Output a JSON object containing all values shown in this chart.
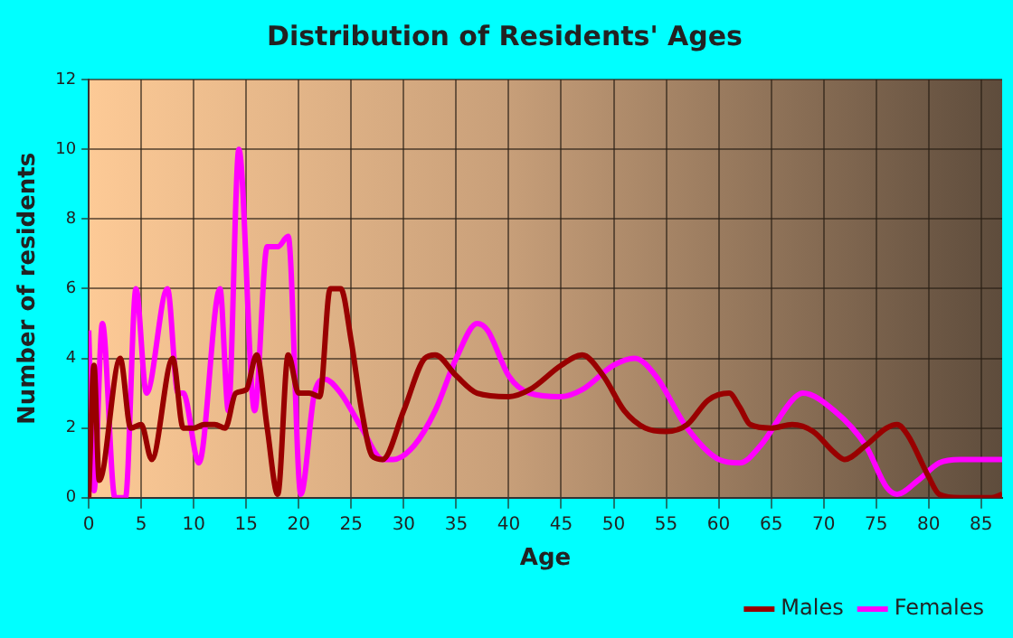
{
  "chart_data": {
    "type": "line",
    "title": "Distribution of Residents' Ages",
    "xlabel": "Age",
    "ylabel": "Number of residents",
    "xlim": [
      0,
      87
    ],
    "xticks": [
      0,
      5,
      10,
      15,
      20,
      25,
      30,
      35,
      40,
      45,
      50,
      55,
      60,
      65,
      70,
      75,
      80,
      85
    ],
    "ylim": [
      0,
      12
    ],
    "yticks": [
      0,
      2,
      4,
      6,
      8,
      10,
      12
    ],
    "grid": true,
    "legend": "bottom right",
    "marker": "none",
    "series": [
      {
        "name": "Males",
        "color": "#990000",
        "x": [
          0,
          0.5,
          1,
          3,
          4,
          5,
          6,
          8,
          9,
          10,
          11,
          12,
          13,
          14,
          15,
          16,
          17,
          18,
          19,
          20,
          21,
          22,
          23,
          24,
          25,
          26,
          27,
          28,
          30,
          32,
          33,
          35,
          37,
          40,
          42,
          45,
          47,
          49,
          51,
          53,
          55,
          57,
          59,
          61,
          62,
          63,
          65,
          67,
          69,
          71,
          72,
          74,
          76,
          77,
          78,
          80,
          81,
          83,
          86,
          87
        ],
        "values": [
          0,
          3.8,
          0.5,
          4,
          2,
          2.1,
          1.1,
          4,
          2,
          2,
          2.1,
          2.1,
          2,
          3,
          3.1,
          4.1,
          2,
          0.1,
          4.1,
          3,
          3,
          2.9,
          6,
          6,
          4.5,
          2.5,
          1.2,
          1.1,
          2.5,
          4,
          4.1,
          3.5,
          3,
          2.9,
          3.1,
          3.8,
          4.1,
          3.5,
          2.5,
          2,
          1.9,
          2.1,
          2.8,
          3,
          2.6,
          2.1,
          2,
          2.1,
          1.9,
          1.3,
          1.1,
          1.5,
          2,
          2.1,
          1.8,
          0.6,
          0.1,
          0,
          0,
          0.1
        ]
      },
      {
        "name": "Females",
        "color": "#ff00ff",
        "x": [
          0,
          0.5,
          1.3,
          2.5,
          3.5,
          4.5,
          5.5,
          7.5,
          8.5,
          9,
          10.5,
          12.5,
          13.3,
          14.3,
          15.8,
          17,
          18,
          19,
          20.2,
          21.5,
          22.5,
          24,
          26,
          28,
          29,
          31,
          33,
          35,
          37,
          38,
          40,
          42,
          45,
          47,
          50,
          52,
          54,
          57,
          60,
          62,
          64,
          67,
          68,
          71,
          74,
          76,
          77,
          79,
          81,
          83,
          87
        ],
        "values": [
          4.8,
          0.2,
          5,
          0,
          0,
          6,
          3,
          6,
          3,
          3,
          1,
          6,
          2.5,
          10,
          2.5,
          7.2,
          7.2,
          7.5,
          0.1,
          3,
          3.4,
          3,
          2,
          1.1,
          1.1,
          1.5,
          2.5,
          4,
          5,
          4.8,
          3.5,
          3,
          2.9,
          3.1,
          3.8,
          4,
          3.5,
          2,
          1.1,
          1,
          1.5,
          2.8,
          3,
          2.5,
          1.5,
          0.3,
          0.1,
          0.5,
          1,
          1.1,
          1.1
        ]
      }
    ]
  }
}
